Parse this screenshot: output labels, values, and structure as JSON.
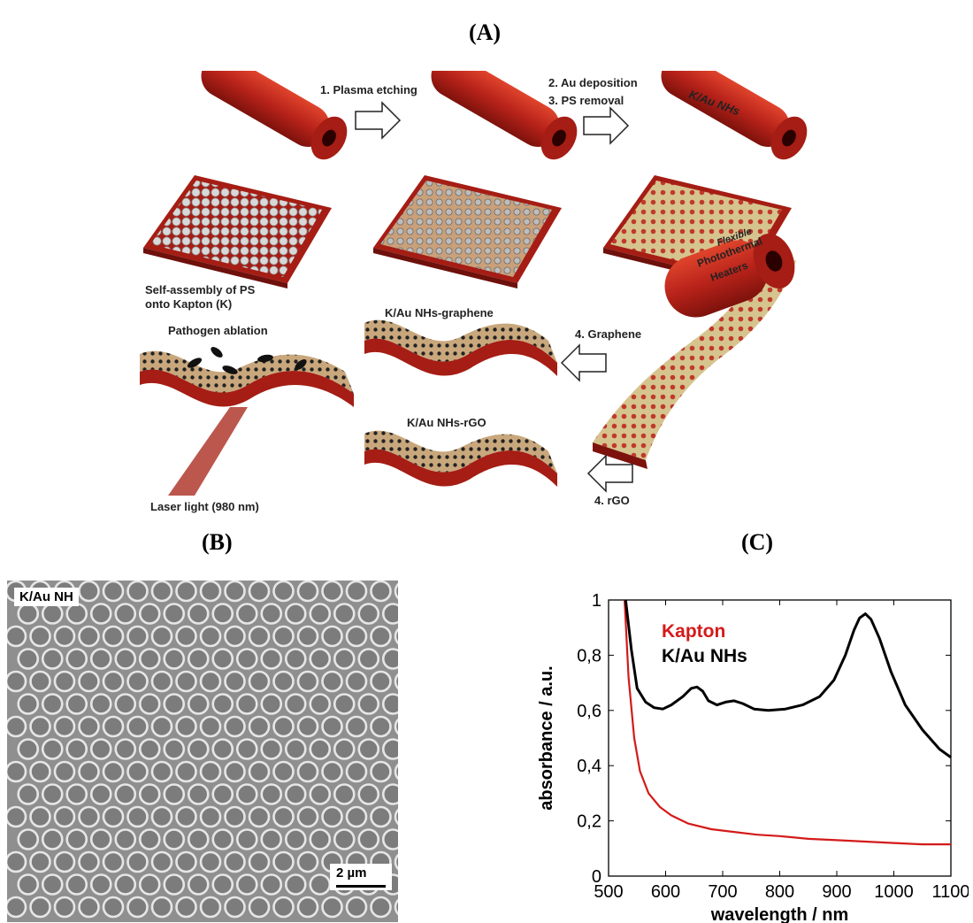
{
  "panels": {
    "a": "(A)",
    "b": "(B)",
    "c": "(C)"
  },
  "schematic": {
    "step1": "1. Plasma etching",
    "step2": "2. Au deposition",
    "step3": "3. PS removal",
    "product": "K/Au NHs",
    "self_assembly_line1": "Self-assembly of PS",
    "self_assembly_line2": "onto Kapton (K)",
    "roll_line1": "Flexible",
    "roll_line2": "Photothermal",
    "roll_line3": "Heaters",
    "graphene_label": "K/Au NHs-graphene",
    "step4_graphene": "4. Graphene",
    "rgo_label": "K/Au NHs-rGO",
    "step4_rgo": "4. rGO",
    "pathogen": "Pathogen ablation",
    "laser": "Laser light (980 nm)"
  },
  "sem": {
    "label": "K/Au NH",
    "scale_bar": "2 µm"
  },
  "chart_data": {
    "type": "line",
    "xlabel": "wavelength / nm",
    "ylabel": "absorbance / a.u.",
    "xlim": [
      500,
      1100
    ],
    "ylim": [
      0,
      1
    ],
    "xticks": [
      "500",
      "600",
      "700",
      "800",
      "900",
      "1000",
      "1100"
    ],
    "yticks": [
      "0",
      "0,2",
      "0,4",
      "0,6",
      "0,8",
      "1"
    ],
    "legend_position": "top-left",
    "series": [
      {
        "name": "Kapton",
        "color": "#d41a1a",
        "x": [
          528,
          535,
          545,
          555,
          570,
          590,
          610,
          640,
          680,
          720,
          760,
          800,
          850,
          900,
          950,
          1000,
          1050,
          1100
        ],
        "y": [
          1.0,
          0.72,
          0.5,
          0.38,
          0.3,
          0.25,
          0.22,
          0.19,
          0.17,
          0.16,
          0.15,
          0.145,
          0.135,
          0.13,
          0.125,
          0.12,
          0.115,
          0.115
        ]
      },
      {
        "name": "K/Au NHs",
        "color": "#000000",
        "x": [
          530,
          540,
          550,
          565,
          580,
          595,
          610,
          630,
          645,
          655,
          665,
          675,
          690,
          705,
          720,
          735,
          755,
          780,
          810,
          840,
          870,
          895,
          915,
          930,
          940,
          950,
          960,
          975,
          995,
          1020,
          1050,
          1080,
          1100
        ],
        "y": [
          1.0,
          0.82,
          0.68,
          0.63,
          0.61,
          0.605,
          0.62,
          0.65,
          0.68,
          0.685,
          0.67,
          0.635,
          0.62,
          0.63,
          0.635,
          0.625,
          0.605,
          0.6,
          0.605,
          0.62,
          0.65,
          0.71,
          0.8,
          0.89,
          0.935,
          0.95,
          0.93,
          0.86,
          0.74,
          0.62,
          0.53,
          0.46,
          0.43
        ]
      }
    ]
  }
}
